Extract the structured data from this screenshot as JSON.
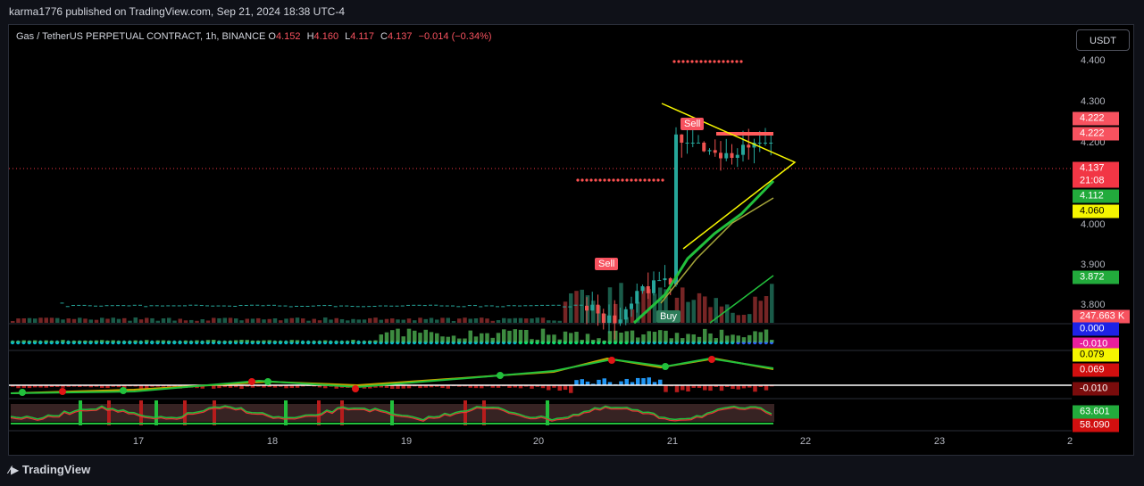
{
  "header": {
    "byline": "karma1776 published on TradingView.com, Sep 21, 2024 18:38 UTC-4"
  },
  "legend": {
    "title": "Gas / TetherUS PERPETUAL CONTRACT, 1h, BINANCE",
    "ohlc": [
      {
        "label": "O",
        "value": "4.152"
      },
      {
        "label": "H",
        "value": "4.160"
      },
      {
        "label": "L",
        "value": "4.117"
      },
      {
        "label": "C",
        "value": "4.137"
      }
    ],
    "change": "−0.014 (−0.34%)"
  },
  "currency_button": "USDT",
  "price_axis": {
    "ticks": [
      "4.400",
      "4.300",
      "4.200",
      "4.000",
      "3.900",
      "3.800"
    ],
    "badges": [
      "4.222",
      "4.222",
      "4.137",
      "21:08",
      "4.112",
      "4.060",
      "3.872",
      "247.663 K",
      "0.000",
      "-0.010",
      "0.079",
      "0.069",
      "-0.010",
      "63.601",
      "58.090"
    ]
  },
  "time_axis": {
    "ticks": [
      "17",
      "18",
      "19",
      "20",
      "21",
      "22",
      "23",
      "2"
    ]
  },
  "chart_labels": {
    "sell_1": "Sell",
    "sell_2": "Sell",
    "buy": "Buy"
  },
  "footer": {
    "brand": "TradingView"
  }
}
